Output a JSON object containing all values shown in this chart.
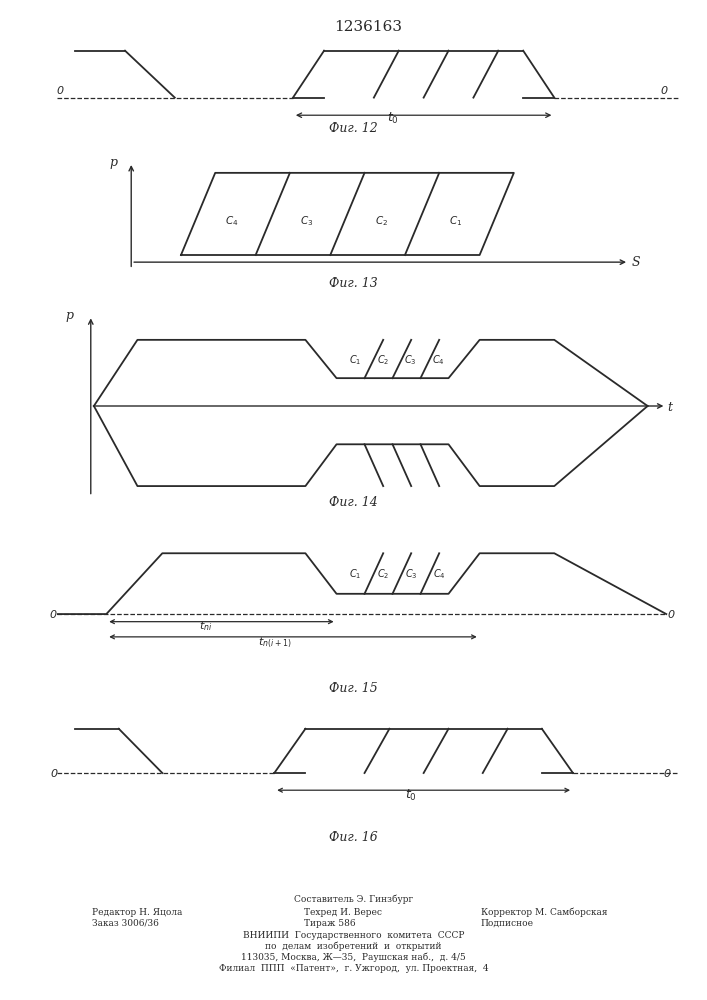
{
  "title": "1236163",
  "fig12_label": "Фиг. 12",
  "fig13_label": "Фиг. 13",
  "fig14_label": "Фиг. 14",
  "fig15_label": "Фиг. 15",
  "fig16_label": "Фиг. 16",
  "line_color": "#2a2a2a",
  "label_fontsize": 9,
  "title_fontsize": 11
}
